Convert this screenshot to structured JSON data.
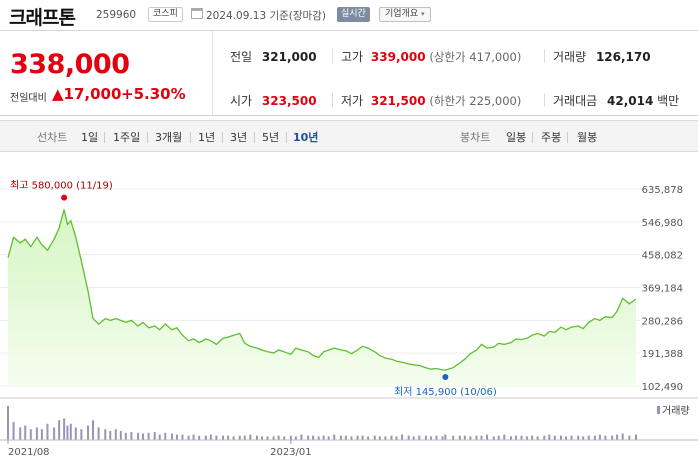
{
  "header": {
    "stock_name": "크래프톤",
    "stock_code": "259960",
    "market_badge": "코스피",
    "date_text": "2024.09.13 기준(장마감)",
    "realtime_button": "실시간",
    "company_overview_button": "기업개요",
    "dropdown_caret": "▾"
  },
  "summary": {
    "current_price": "338,000",
    "change_label": "전일대비",
    "change_arrow": "▲",
    "change_value": "17,000",
    "change_percent": "+5.30%",
    "stats": {
      "prev_close": {
        "label": "전일",
        "value": "321,000"
      },
      "high": {
        "label": "고가",
        "value": "339,000",
        "sub": "(상한가 417,000)"
      },
      "volume": {
        "label": "거래량",
        "value": "126,170"
      },
      "open": {
        "label": "시가",
        "value": "323,500"
      },
      "low": {
        "label": "저가",
        "value": "321,500",
        "sub": "(하한가 225,000)"
      },
      "trade_value": {
        "label": "거래대금",
        "value": "42,014",
        "unit": "백만"
      }
    }
  },
  "toolbar": {
    "line_chart_label": "선차트",
    "periods": [
      "1일",
      "1주일",
      "3개월",
      "1년",
      "3년",
      "5년",
      "10년"
    ],
    "selected_period": "10년",
    "candle_chart_label": "봉차트",
    "candle_periods": [
      "일봉",
      "주봉",
      "월봉"
    ]
  },
  "chart_data": {
    "type": "area",
    "title": "",
    "x_tick_labels": [
      "2021/08",
      "2023/01"
    ],
    "y_tick_labels": [
      "635,878",
      "546,980",
      "458,082",
      "369,184",
      "280,286",
      "191,388",
      "102,490"
    ],
    "ylim": [
      102490,
      635878
    ],
    "x_range": [
      "2021/08",
      "2024/09"
    ],
    "annotations": {
      "high_label": "최고 580,000 (11/19)",
      "low_label": "최저 145,900 (10/06)"
    },
    "volume_legend": "거래량",
    "x": [
      "2021/08/10",
      "2021/08/20",
      "2021/09/01",
      "2021/09/10",
      "2021/09/20",
      "2021/10/01",
      "2021/10/10",
      "2021/10/20",
      "2021/11/01",
      "2021/11/10",
      "2021/11/19",
      "2021/11/25",
      "2021/12/01",
      "2021/12/10",
      "2021/12/20",
      "2022/01/01",
      "2022/01/10",
      "2022/01/20",
      "2022/02/01",
      "2022/02/10",
      "2022/02/20",
      "2022/03/01",
      "2022/03/10",
      "2022/03/20",
      "2022/04/01",
      "2022/04/10",
      "2022/04/20",
      "2022/05/01",
      "2022/05/10",
      "2022/05/20",
      "2022/06/01",
      "2022/06/10",
      "2022/06/20",
      "2022/07/01",
      "2022/07/10",
      "2022/07/20",
      "2022/08/01",
      "2022/08/10",
      "2022/08/20",
      "2022/09/01",
      "2022/09/10",
      "2022/09/20",
      "2022/10/01",
      "2022/10/10",
      "2022/10/20",
      "2022/11/01",
      "2022/11/10",
      "2022/11/20",
      "2022/12/01",
      "2022/12/10",
      "2022/12/20",
      "2023/01/01",
      "2023/01/10",
      "2023/01/20",
      "2023/02/01",
      "2023/02/10",
      "2023/02/20",
      "2023/03/01",
      "2023/03/10",
      "2023/03/20",
      "2023/04/01",
      "2023/04/10",
      "2023/04/20",
      "2023/05/01",
      "2023/05/10",
      "2023/05/20",
      "2023/06/01",
      "2023/06/10",
      "2023/06/20",
      "2023/07/01",
      "2023/07/10",
      "2023/07/20",
      "2023/08/01",
      "2023/08/10",
      "2023/08/20",
      "2023/09/01",
      "2023/09/10",
      "2023/09/20",
      "2023/10/01",
      "2023/10/06",
      "2023/10/20",
      "2023/11/01",
      "2023/11/10",
      "2023/11/20",
      "2023/12/01",
      "2023/12/10",
      "2023/12/20",
      "2024/01/01",
      "2024/01/10",
      "2024/01/20",
      "2024/02/01",
      "2024/02/10",
      "2024/02/20",
      "2024/03/01",
      "2024/03/10",
      "2024/03/20",
      "2024/04/01",
      "2024/04/10",
      "2024/04/20",
      "2024/05/01",
      "2024/05/10",
      "2024/05/20",
      "2024/06/01",
      "2024/06/10",
      "2024/06/20",
      "2024/07/01",
      "2024/07/10",
      "2024/07/20",
      "2024/08/01",
      "2024/08/10",
      "2024/08/20",
      "2024/09/01",
      "2024/09/13"
    ],
    "series": [
      {
        "values": [
          450000,
          505000,
          490000,
          500000,
          480000,
          505000,
          485000,
          470000,
          500000,
          530000,
          580000,
          540000,
          550000,
          505000,
          440000,
          360000,
          285000,
          270000,
          285000,
          280000,
          285000,
          280000,
          275000,
          280000,
          265000,
          275000,
          260000,
          265000,
          255000,
          270000,
          255000,
          260000,
          240000,
          225000,
          230000,
          220000,
          230000,
          225000,
          215000,
          232000,
          235000,
          240000,
          245000,
          218000,
          210000,
          205000,
          200000,
          195000,
          192000,
          200000,
          195000,
          188000,
          205000,
          200000,
          195000,
          185000,
          180000,
          195000,
          200000,
          205000,
          200000,
          198000,
          190000,
          200000,
          210000,
          205000,
          195000,
          185000,
          178000,
          175000,
          170000,
          167000,
          162000,
          160000,
          158000,
          152000,
          148000,
          150000,
          146000,
          145900,
          152000,
          165000,
          175000,
          190000,
          200000,
          215000,
          205000,
          208000,
          218000,
          215000,
          220000,
          230000,
          228000,
          232000,
          240000,
          245000,
          238000,
          250000,
          248000,
          262000,
          255000,
          262000,
          265000,
          258000,
          275000,
          285000,
          280000,
          290000,
          288000,
          305000,
          340000,
          325000,
          338000
        ]
      }
    ],
    "volume": [
      0.95,
      0.5,
      0.35,
      0.4,
      0.3,
      0.35,
      0.3,
      0.45,
      0.35,
      0.55,
      0.6,
      0.4,
      0.45,
      0.35,
      0.3,
      0.4,
      0.55,
      0.35,
      0.3,
      0.25,
      0.3,
      0.25,
      0.2,
      0.22,
      0.2,
      0.18,
      0.2,
      0.22,
      0.15,
      0.2,
      0.18,
      0.15,
      0.15,
      0.12,
      0.15,
      0.12,
      0.12,
      0.15,
      0.12,
      0.12,
      0.12,
      0.1,
      0.12,
      0.12,
      0.15,
      0.12,
      0.1,
      0.1,
      0.1,
      0.12,
      0.1,
      0.12,
      0.1,
      0.15,
      0.12,
      0.12,
      0.1,
      0.12,
      0.1,
      0.15,
      0.12,
      0.12,
      0.1,
      0.12,
      0.12,
      0.1,
      0.12,
      0.1,
      0.1,
      0.12,
      0.1,
      0.15,
      0.12,
      0.1,
      0.12,
      0.12,
      0.1,
      0.12,
      0.1,
      0.15,
      0.12,
      0.12,
      0.12,
      0.1,
      0.12,
      0.12,
      0.15,
      0.1,
      0.12,
      0.15,
      0.1,
      0.12,
      0.12,
      0.1,
      0.12,
      0.1,
      0.12,
      0.15,
      0.12,
      0.12,
      0.1,
      0.12,
      0.12,
      0.1,
      0.12,
      0.12,
      0.15,
      0.12,
      0.12,
      0.15,
      0.18,
      0.12,
      0.15
    ]
  },
  "colors": {
    "up_red": "#e3000f",
    "selected_blue": "#1d4ea3",
    "line_green": "#5fbf2f",
    "area_green": "#c8efb5",
    "volume_purple": "#9c92b8",
    "high_marker": "#e3000f",
    "low_marker": "#1565c0"
  }
}
